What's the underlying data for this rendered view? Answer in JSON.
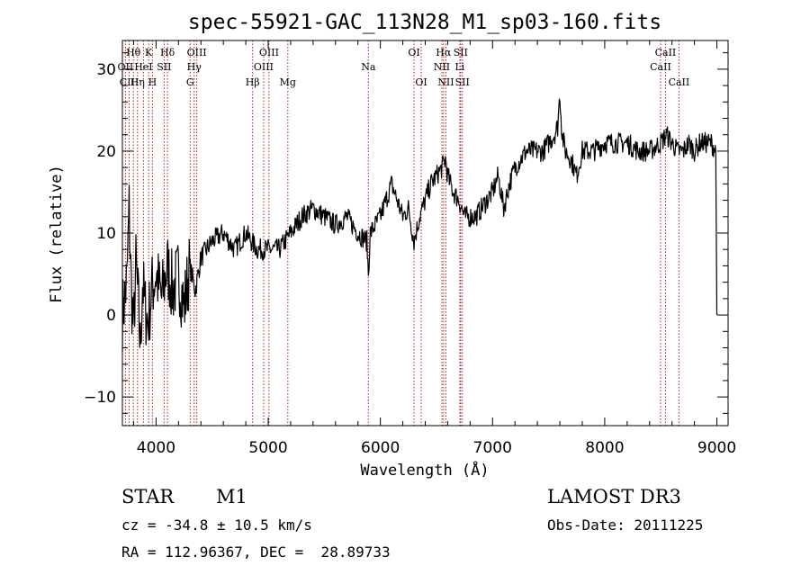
{
  "chart_data": {
    "type": "line",
    "title": "spec-55921-GAC_113N28_M1_sp03-160.fits",
    "xlabel": "Wavelength (Å)",
    "ylabel": "Flux (relative)",
    "xlim": [
      3700,
      9100
    ],
    "ylim": [
      -13.5,
      33.5
    ],
    "xticks": [
      4000,
      5000,
      6000,
      7000,
      8000,
      9000
    ],
    "yticks": [
      -10,
      0,
      10,
      20,
      30
    ],
    "grid": false,
    "legend": "none",
    "colors": {
      "spectrum": "#000000",
      "line_markers": "#b22222"
    },
    "series": [
      {
        "x": [
          3700,
          3740,
          3760,
          3780,
          3800,
          3820,
          3840,
          3860,
          3880,
          3900,
          3930,
          3960,
          4000,
          4050,
          4100,
          4150,
          4200,
          4250,
          4300,
          4350,
          4400,
          4500,
          4600,
          4700,
          4800,
          4900,
          5000,
          5100,
          5200,
          5300,
          5400,
          5500,
          5600,
          5700,
          5800,
          5880,
          5893,
          5910,
          6000,
          6050,
          6100,
          6150,
          6200,
          6250,
          6300,
          6350,
          6400,
          6450,
          6500,
          6550,
          6580,
          6600,
          6650,
          6700,
          6750,
          6800,
          6850,
          6900,
          6950,
          7000,
          7050,
          7100,
          7150,
          7200,
          7250,
          7300,
          7350,
          7400,
          7450,
          7500,
          7550,
          7580,
          7600,
          7620,
          7650,
          7700,
          7750,
          7800,
          7900,
          8000,
          8100,
          8200,
          8300,
          8400,
          8500,
          8550,
          8600,
          8650,
          8700,
          8750,
          8800,
          8850,
          8900,
          8950,
          8990,
          9000
        ],
        "y": [
          0,
          4,
          13,
          3,
          -2,
          6,
          2,
          -4,
          4,
          1,
          -1,
          3,
          5,
          2,
          6,
          3,
          5,
          1,
          6,
          3,
          7,
          9,
          10,
          8,
          10,
          8,
          8,
          8,
          10,
          12,
          13,
          12,
          11,
          12,
          10,
          9,
          5,
          10,
          12,
          14,
          16,
          14,
          12,
          13,
          9,
          12,
          14,
          16,
          17,
          18,
          19,
          17,
          15,
          14,
          12,
          12,
          12,
          13,
          14,
          15,
          17,
          13,
          16,
          18,
          19,
          20,
          20,
          20,
          20,
          21,
          22,
          23,
          27,
          22,
          20,
          19,
          17,
          20,
          20,
          21,
          21,
          21,
          20,
          20,
          21,
          22,
          21,
          20,
          20,
          21,
          20,
          21,
          21,
          21,
          20,
          0
        ]
      }
    ],
    "line_markers": [
      {
        "name": "Hθ",
        "wavelength": 3798,
        "row": 1
      },
      {
        "name": "OII",
        "wavelength": 3727,
        "row": 2
      },
      {
        "name": "CIII",
        "wavelength": 3760,
        "row": 3
      },
      {
        "name": "K",
        "wavelength": 3934,
        "row": 1
      },
      {
        "name": "HeI",
        "wavelength": 3888,
        "row": 2
      },
      {
        "name": "Hη",
        "wavelength": 3835,
        "row": 3
      },
      {
        "name": "SII",
        "wavelength": 4072,
        "row": 2
      },
      {
        "name": "H",
        "wavelength": 3968,
        "row": 3
      },
      {
        "name": "Hδ",
        "wavelength": 4102,
        "row": 1
      },
      {
        "name": "OIII",
        "wavelength": 4363,
        "row": 1
      },
      {
        "name": "Hγ",
        "wavelength": 4340,
        "row": 2
      },
      {
        "name": "G",
        "wavelength": 4304,
        "row": 3
      },
      {
        "name": "Hβ",
        "wavelength": 4861,
        "row": 3
      },
      {
        "name": "OIII",
        "wavelength": 5007,
        "row": 1
      },
      {
        "name": "OIII",
        "wavelength": 4959,
        "row": 2
      },
      {
        "name": "Mg",
        "wavelength": 5175,
        "row": 3
      },
      {
        "name": "Na",
        "wavelength": 5893,
        "row": 2
      },
      {
        "name": "OI",
        "wavelength": 6300,
        "row": 1
      },
      {
        "name": "OI",
        "wavelength": 6364,
        "row": 3
      },
      {
        "name": "Hα",
        "wavelength": 6563,
        "row": 1
      },
      {
        "name": "NII",
        "wavelength": 6548,
        "row": 2
      },
      {
        "name": "NII",
        "wavelength": 6584,
        "row": 3
      },
      {
        "name": "SII",
        "wavelength": 6716,
        "row": 1
      },
      {
        "name": "Li",
        "wavelength": 6708,
        "row": 2
      },
      {
        "name": "SII",
        "wavelength": 6731,
        "row": 3
      },
      {
        "name": "CaII",
        "wavelength": 8542,
        "row": 1
      },
      {
        "name": "CaII",
        "wavelength": 8498,
        "row": 2
      },
      {
        "name": "CaII",
        "wavelength": 8662,
        "row": 3
      }
    ]
  },
  "footer": {
    "class": "STAR",
    "subclass": "M1",
    "survey": "LAMOST DR3",
    "redshift": "cz = -34.8 ± 10.5 km/s",
    "obs_date": "Obs-Date: 20111225",
    "coords": "RA = 112.96367, DEC =  28.89733"
  }
}
